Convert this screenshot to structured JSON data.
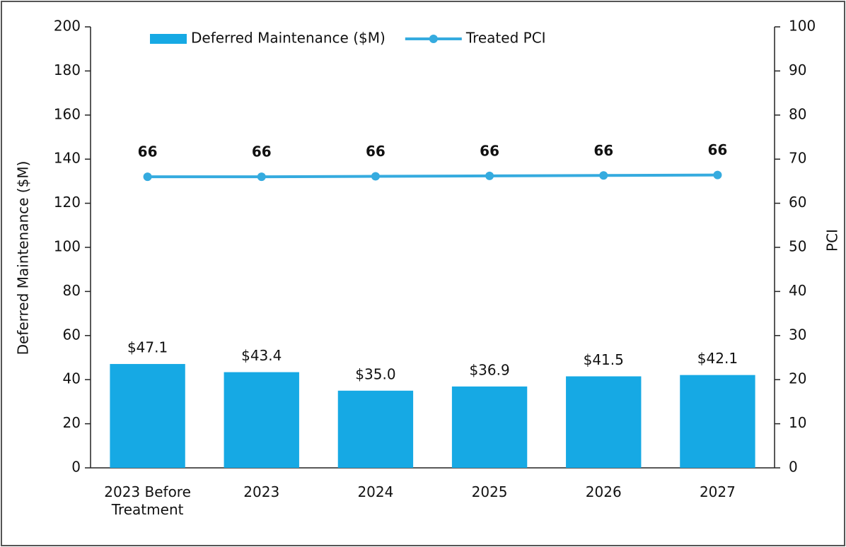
{
  "chart_data": {
    "type": "bar",
    "categories": [
      "2023 Before Treatment",
      "2023",
      "2024",
      "2025",
      "2026",
      "2027"
    ],
    "series": [
      {
        "name": "Deferred Maintenance ($M)",
        "type": "bar",
        "color": "#16a9e4",
        "axis": "y",
        "values": [
          47.1,
          43.4,
          35.0,
          36.9,
          41.5,
          42.1
        ],
        "value_labels": [
          "$47.1",
          "$43.4",
          "$35.0",
          "$36.9",
          "$41.5",
          "$42.1"
        ]
      },
      {
        "name": "Treated PCI",
        "type": "line",
        "color": "#35abdf",
        "axis": "y2",
        "values": [
          66,
          66,
          66.1,
          66.2,
          66.3,
          66.4
        ],
        "value_labels": [
          "66",
          "66",
          "66",
          "66",
          "66",
          "66"
        ]
      }
    ],
    "ylabel": "Deferred Maintenance ($M)",
    "y2label": "PCI",
    "ylim": [
      0,
      200
    ],
    "yticks": [
      0,
      20,
      40,
      60,
      80,
      100,
      120,
      140,
      160,
      180,
      200
    ],
    "y2lim": [
      0,
      100
    ],
    "y2ticks": [
      0,
      10,
      20,
      30,
      40,
      50,
      60,
      70,
      80,
      90,
      100
    ],
    "legend": "top"
  }
}
